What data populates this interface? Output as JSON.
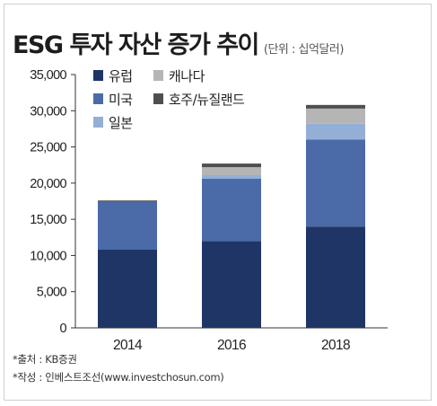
{
  "chart_data": {
    "type": "bar",
    "stacked": true,
    "title": "ESG 투자 자산 증가 추이",
    "unit_label": "(단위 : 십억달러)",
    "categories": [
      "2014",
      "2016",
      "2018"
    ],
    "series": [
      {
        "name": "유럽",
        "color": "#1f3566",
        "values": [
          10800,
          12000,
          14000
        ]
      },
      {
        "name": "미국",
        "color": "#4a6aa8",
        "values": [
          6600,
          8600,
          12000
        ]
      },
      {
        "name": "일본",
        "color": "#94afd6",
        "values": [
          0,
          500,
          2200
        ]
      },
      {
        "name": "캐나다",
        "color": "#b5b5b5",
        "values": [
          0,
          1100,
          2100
        ]
      },
      {
        "name": "호주/뉴질랜드",
        "color": "#4f4f4f",
        "values": [
          200,
          500,
          500
        ]
      }
    ],
    "y_ticks": [
      "0",
      "5,000",
      "10,000",
      "15,000",
      "20,000",
      "25,000",
      "30,000",
      "35,000"
    ],
    "ylim": [
      0,
      35000
    ],
    "xlabel": "",
    "ylabel": "",
    "grid": false,
    "legend_position": "top-left"
  },
  "sources": [
    "*출처 : KB증권",
    "*작성 : 인베스트조선(www.investchosun.com)"
  ]
}
